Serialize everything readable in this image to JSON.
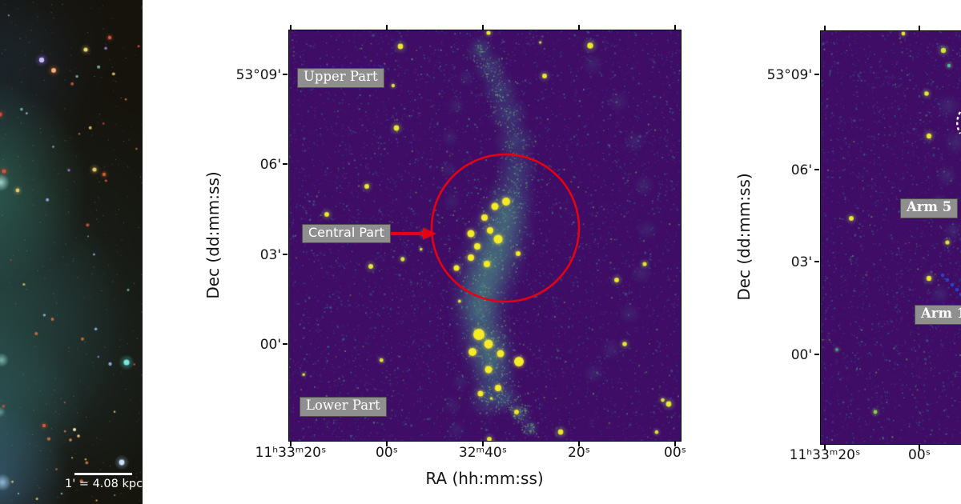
{
  "colors": {
    "annotation_red": "#e60012",
    "label_box_bg": "#8f8f8f",
    "label_box_border": "#4f4f4f",
    "label_text": "#ffffff",
    "axis_text": "#141414",
    "blue_marker": "#2640cc",
    "white_marker": "#ffffff"
  },
  "left_panel": {
    "scale_bar_label": "1' = 4.08 kpc"
  },
  "middle_panel": {
    "xlabel": "RA (hh:mm:ss)",
    "ylabel": "Dec (dd:mm:ss)",
    "xticks": [
      "11ʰ33ᵐ20ˢ",
      "00ˢ",
      "32ᵐ40ˢ",
      "20ˢ",
      "00ˢ"
    ],
    "yticks": [
      "53°09'",
      "06'",
      "03'",
      "00'"
    ],
    "annotations": {
      "upper": "Upper Part",
      "central": "Central Part",
      "lower": "Lower Part"
    }
  },
  "right_panel": {
    "ylabel": "Dec (dd:mm:ss)",
    "xticks": [
      "11ʰ33ᵐ20ˢ",
      "00ˢ"
    ],
    "yticks": [
      "53°09'",
      "06'",
      "03'",
      "00'"
    ],
    "annotations": {
      "arm5": "Arm 5",
      "arm1": "Arm 1"
    }
  }
}
